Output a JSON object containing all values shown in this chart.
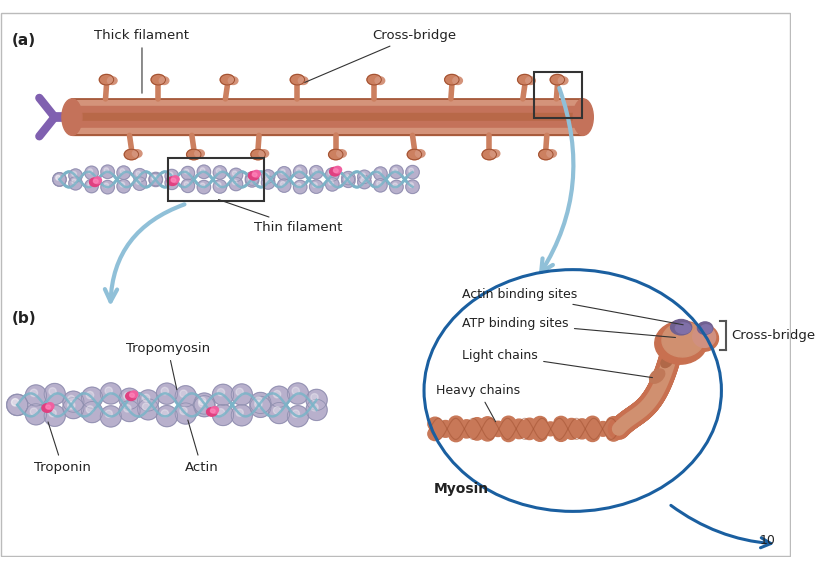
{
  "background_color": "#ffffff",
  "panel_a_label": "(a)",
  "panel_b_label": "(b)",
  "page_number": "10",
  "labels": {
    "thick_filament": "Thick filament",
    "cross_bridge_a": "Cross-bridge",
    "thin_filament": "Thin filament",
    "tropomyosin": "Tropomyosin",
    "troponin": "Troponin",
    "actin_b": "Actin",
    "actin_binding": "Actin binding sites",
    "atp_binding": "ATP binding sites",
    "light_chains": "Light chains",
    "heavy_chains": "Heavy chains",
    "myosin_label": "Myosin",
    "cross_bridge_ellipse": "Cross-bridge"
  },
  "colors": {
    "thick_filament_main": "#c4725a",
    "thick_filament_light": "#d4937a",
    "thick_filament_dark": "#a05030",
    "thick_filament_stripe1": "#cd7d60",
    "thick_filament_stripe2": "#b86848",
    "actin_bead": "#b8b0cc",
    "actin_bead_edge": "#9090b0",
    "tropomyosin_blue": "#7ab4c8",
    "troponin_pink": "#e04080",
    "troponin_pink2": "#f060a0",
    "cross_bridge_fill": "#cc8060",
    "myosin_tail": "#c87858",
    "myosin_head": "#c87050",
    "myosin_head2": "#d09070",
    "myosin_purple": "#706090",
    "myosin_purple2": "#8070a8",
    "ellipse_border": "#1a5fa0",
    "arrow_fill": "#90c0d8",
    "arrow_fill_dark": "#1a5fa0",
    "purple_bracket": "#806080",
    "text_color": "#222222",
    "bracket_color": "#555555"
  }
}
